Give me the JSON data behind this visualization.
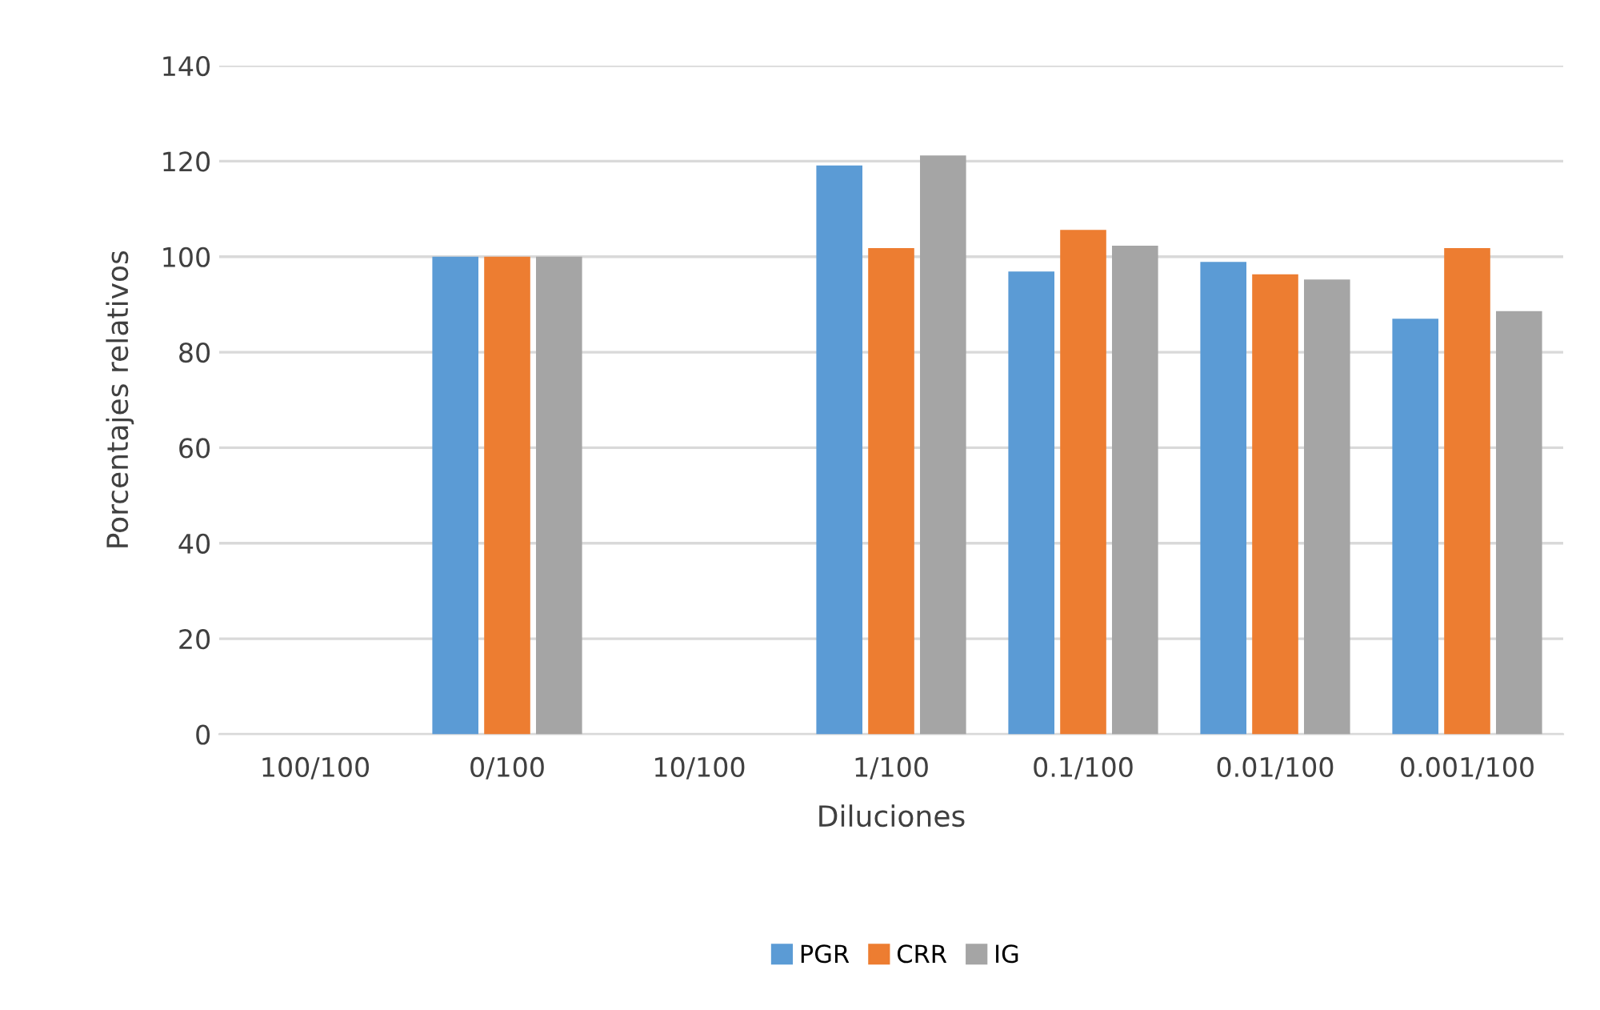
{
  "chart_data": {
    "type": "bar",
    "xlabel": "Diluciones",
    "ylabel": "Porcentajes relativos",
    "categories": [
      "100/100",
      "0/100",
      "10/100",
      "1/100",
      "0.1/100",
      "0.01/100",
      "0.001/100"
    ],
    "series": [
      {
        "name": "PGR",
        "color": "#5b9bd5",
        "values": [
          null,
          100,
          null,
          119.1,
          96.9,
          98.9,
          87.0
        ]
      },
      {
        "name": "CRR",
        "color": "#ed7d31",
        "values": [
          null,
          100,
          null,
          101.8,
          105.6,
          96.3,
          101.8
        ]
      },
      {
        "name": "IG",
        "color": "#a5a5a5",
        "values": [
          null,
          100,
          null,
          121.2,
          102.3,
          95.2,
          88.6
        ]
      }
    ],
    "ylim": [
      0,
      140
    ],
    "yticks": [
      0,
      20,
      40,
      60,
      80,
      100,
      120,
      140
    ],
    "grid": "y",
    "legend": "bottom"
  }
}
